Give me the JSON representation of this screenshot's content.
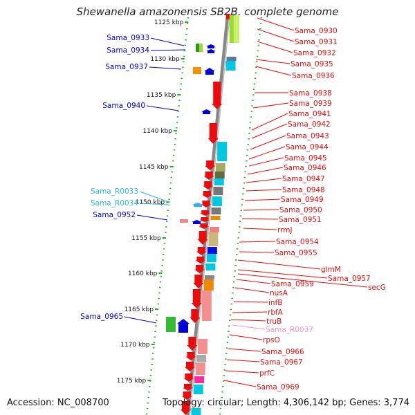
{
  "title": "Shewanella amazonensis SB2B, complete genome",
  "accession": "Accession: NC_008700",
  "summary": "Topology: circular; Length: 4,306,142 bp; Genes: 3,774",
  "colors": {
    "red": "#ee0a0a",
    "blue": "#0000dd",
    "cyan": "#00c8e0",
    "light_blue": "#2bb5ea",
    "pink": "#ff8fc8",
    "green_tick": "#22aa22",
    "backbone": "#888888"
  },
  "ruler": [
    {
      "label": "1125 kbp"
    },
    {
      "label": "1130 kbp"
    },
    {
      "label": "1135 kbp"
    },
    {
      "label": "1140 kbp"
    },
    {
      "label": "1145 kbp"
    },
    {
      "label": "1150 kbp"
    },
    {
      "label": "1155 kbp"
    },
    {
      "label": "1160 kbp"
    },
    {
      "label": "1165 kbp"
    },
    {
      "label": "1170 kbp"
    },
    {
      "label": "1175 kbp"
    }
  ],
  "left_labels": [
    {
      "text": "Sama_0933",
      "color": "blue"
    },
    {
      "text": "Sama_0934",
      "color": "blue"
    },
    {
      "text": "Sama_0937",
      "color": "blue"
    },
    {
      "text": "Sama_0940",
      "color": "blue"
    },
    {
      "text": "Sama_R0033",
      "color": "light_blue"
    },
    {
      "text": "Sama_R0034",
      "color": "light_blue"
    },
    {
      "text": "Sama_0952",
      "color": "blue"
    },
    {
      "text": "Sama_0965",
      "color": "blue"
    }
  ],
  "right_labels": [
    {
      "text": "Sama_0930",
      "color": "red"
    },
    {
      "text": "Sama_0931",
      "color": "red"
    },
    {
      "text": "Sama_0932",
      "color": "red"
    },
    {
      "text": "Sama_0935",
      "color": "red"
    },
    {
      "text": "Sama_0936",
      "color": "red"
    },
    {
      "text": "Sama_0938",
      "color": "red"
    },
    {
      "text": "Sama_0939",
      "color": "red"
    },
    {
      "text": "Sama_0941",
      "color": "red"
    },
    {
      "text": "Sama_0942",
      "color": "red"
    },
    {
      "text": "Sama_0943",
      "color": "red"
    },
    {
      "text": "Sama_0944",
      "color": "red"
    },
    {
      "text": "Sama_0945",
      "color": "red"
    },
    {
      "text": "Sama_0946",
      "color": "red"
    },
    {
      "text": "Sama_0947",
      "color": "red"
    },
    {
      "text": "Sama_0948",
      "color": "red"
    },
    {
      "text": "Sama_0949",
      "color": "red"
    },
    {
      "text": "Sama_0950",
      "color": "red"
    },
    {
      "text": "Sama_0951",
      "color": "red"
    },
    {
      "text": "rrmJ",
      "color": "red"
    },
    {
      "text": "Sama_0954",
      "color": "red"
    },
    {
      "text": "Sama_0955",
      "color": "red"
    },
    {
      "text": "glmM",
      "color": "red"
    },
    {
      "text": "Sama_0957",
      "color": "red"
    },
    {
      "text": "secG",
      "color": "red"
    },
    {
      "text": "Sama_0959",
      "color": "red"
    },
    {
      "text": "nusA",
      "color": "red"
    },
    {
      "text": "infB",
      "color": "red"
    },
    {
      "text": "rbfA",
      "color": "red"
    },
    {
      "text": "truB",
      "color": "red"
    },
    {
      "text": "Sama_R0037",
      "color": "pink"
    },
    {
      "text": "rpsO",
      "color": "red"
    },
    {
      "text": "Sama_0966",
      "color": "red"
    },
    {
      "text": "Sama_0967",
      "color": "red"
    },
    {
      "text": "prfC",
      "color": "red"
    },
    {
      "text": "Sama_0969",
      "color": "red"
    }
  ]
}
